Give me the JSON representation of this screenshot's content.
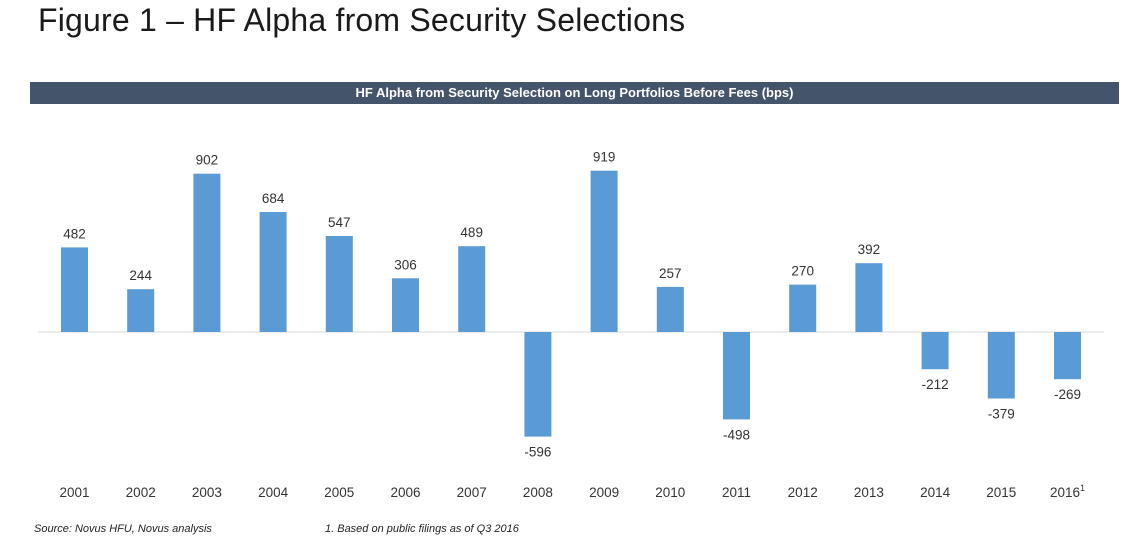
{
  "figure": {
    "title": "Figure 1 – HF Alpha from Security Selections"
  },
  "source_note": "Source: Novus HFU, Novus analysis",
  "footnote": "1. Based on public filings as of Q3 2016",
  "colors": {
    "bar": "#5b9bd5",
    "banner": "#44546a",
    "baseline": "#d9d9d9"
  },
  "chart_data": {
    "type": "bar",
    "title": "HF Alpha from Security Selection on Long Portfolios Before Fees (bps)",
    "xlabel": "",
    "ylabel": "",
    "categories": [
      "2001",
      "2002",
      "2003",
      "2004",
      "2005",
      "2006",
      "2007",
      "2008",
      "2009",
      "2010",
      "2011",
      "2012",
      "2013",
      "2014",
      "2015",
      "2016"
    ],
    "category_superscripts": [
      "",
      "",
      "",
      "",
      "",
      "",
      "",
      "",
      "",
      "",
      "",
      "",
      "",
      "",
      "",
      "1"
    ],
    "values": [
      482,
      244,
      902,
      684,
      547,
      306,
      489,
      -596,
      919,
      257,
      -498,
      270,
      392,
      -212,
      -379,
      -269
    ],
    "ylim": [
      -596,
      919
    ],
    "grid": false,
    "legend": "none",
    "data_labels": true
  }
}
